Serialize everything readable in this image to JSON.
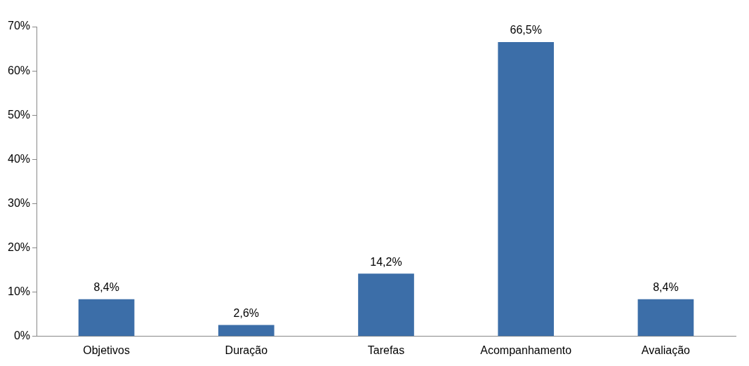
{
  "chart_data": {
    "type": "bar",
    "categories": [
      "Objetivos",
      "Duração",
      "Tarefas",
      "Acompanhamento",
      "Avaliação"
    ],
    "values": [
      8.4,
      2.6,
      14.2,
      66.5,
      8.4
    ],
    "value_labels": [
      "8,4%",
      "2,6%",
      "14,2%",
      "66,5%",
      "8,4%"
    ],
    "color": "#3c6ea8",
    "ylim": [
      0,
      70
    ],
    "yticks": [
      {
        "value": 0,
        "label": "0%"
      },
      {
        "value": 10,
        "label": "10%"
      },
      {
        "value": 20,
        "label": "20%"
      },
      {
        "value": 30,
        "label": "30%"
      },
      {
        "value": 40,
        "label": "40%"
      },
      {
        "value": 50,
        "label": "50%"
      },
      {
        "value": 60,
        "label": "60%"
      },
      {
        "value": 70,
        "label": "70%"
      }
    ],
    "grid": false,
    "legend": false
  }
}
